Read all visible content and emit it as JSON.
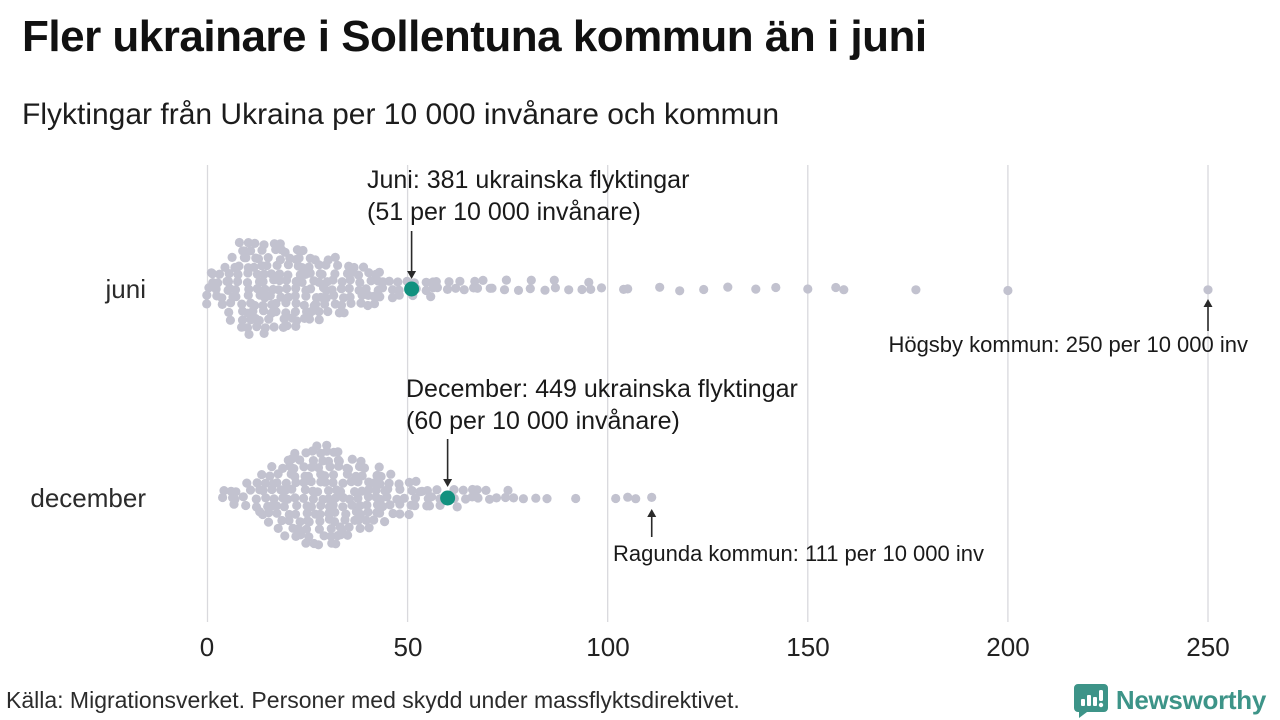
{
  "header": {
    "title": "Fler ukrainare i Sollentuna kommun än i juni",
    "subtitle": "Flyktingar från Ukraina per 10 000 invånare och kommun"
  },
  "chart_data": {
    "type": "scatter",
    "variant": "beeswarm",
    "title": "Fler ukrainare i Sollentuna kommun än i juni",
    "xlabel": "Flyktingar från Ukraina per 10 000 invånare och kommun",
    "x_ticks": [
      0,
      50,
      100,
      150,
      200,
      250
    ],
    "xlim": [
      0,
      262
    ],
    "grid": true,
    "legend": "none",
    "dot_color": "#c2c2cf",
    "highlight_color": "#12917f",
    "grid_color": "#d9d9dd",
    "rows": [
      {
        "label": "juni",
        "highlight": {
          "value": 51,
          "line1": "Juni: 381 ukrainska flyktingar",
          "line2": "(51 per 10 000 invånare)"
        },
        "max_annotation": {
          "value": 250,
          "text": "Högsby kommun: 250 per 10 000 inv"
        },
        "bins_estimated": [
          [
            0,
            5
          ],
          [
            2,
            4
          ],
          [
            4,
            6
          ],
          [
            6,
            9
          ],
          [
            8,
            12
          ],
          [
            10,
            13
          ],
          [
            12,
            12
          ],
          [
            14,
            13
          ],
          [
            16,
            12
          ],
          [
            18,
            12
          ],
          [
            20,
            11
          ],
          [
            22,
            11
          ],
          [
            24,
            10
          ],
          [
            26,
            9
          ],
          [
            28,
            9
          ],
          [
            30,
            8
          ],
          [
            32,
            8
          ],
          [
            34,
            7
          ],
          [
            36,
            6
          ],
          [
            38,
            5
          ],
          [
            40,
            6
          ],
          [
            42,
            5
          ],
          [
            44,
            4
          ],
          [
            46,
            3
          ],
          [
            48,
            3
          ],
          [
            50,
            3
          ],
          [
            52,
            2
          ],
          [
            54,
            2
          ],
          [
            56,
            3
          ],
          [
            58,
            2
          ],
          [
            60,
            2
          ],
          [
            62,
            2
          ],
          [
            64,
            1
          ],
          [
            66,
            2
          ],
          [
            68,
            1
          ],
          [
            70,
            2
          ],
          [
            72,
            1
          ],
          [
            75,
            2
          ],
          [
            78,
            1
          ],
          [
            81,
            2
          ],
          [
            84,
            1
          ],
          [
            87,
            2
          ],
          [
            90,
            1
          ],
          [
            93,
            1
          ],
          [
            96,
            2
          ],
          [
            99,
            1
          ],
          [
            103,
            1
          ]
        ],
        "outliers": [
          105,
          113,
          118,
          124,
          130,
          137,
          142,
          150,
          157,
          159,
          177,
          200,
          250
        ]
      },
      {
        "label": "december",
        "highlight": {
          "value": 60,
          "line1": "December: 449 ukrainska flyktingar",
          "line2": "(60 per 10 000 invånare)"
        },
        "max_annotation": {
          "value": 111,
          "text": "Ragunda kommun: 111 per 10 000 inv"
        },
        "bins_estimated": [
          [
            4,
            2
          ],
          [
            6,
            2
          ],
          [
            8,
            3
          ],
          [
            10,
            4
          ],
          [
            12,
            5
          ],
          [
            14,
            6
          ],
          [
            16,
            8
          ],
          [
            18,
            9
          ],
          [
            20,
            11
          ],
          [
            22,
            12
          ],
          [
            24,
            13
          ],
          [
            26,
            14
          ],
          [
            28,
            13
          ],
          [
            30,
            14
          ],
          [
            32,
            13
          ],
          [
            34,
            12
          ],
          [
            36,
            11
          ],
          [
            38,
            10
          ],
          [
            40,
            9
          ],
          [
            42,
            8
          ],
          [
            44,
            7
          ],
          [
            46,
            6
          ],
          [
            48,
            5
          ],
          [
            50,
            5
          ],
          [
            52,
            4
          ],
          [
            54,
            3
          ],
          [
            56,
            3
          ],
          [
            58,
            3
          ],
          [
            62,
            3
          ],
          [
            64,
            2
          ],
          [
            66,
            2
          ],
          [
            68,
            2
          ],
          [
            70,
            2
          ],
          [
            72,
            1
          ],
          [
            74,
            2
          ],
          [
            76,
            1
          ],
          [
            79,
            1
          ],
          [
            82,
            1
          ],
          [
            85,
            1
          ],
          [
            92,
            1
          ]
        ],
        "outliers": [
          102,
          105,
          107,
          111
        ]
      }
    ]
  },
  "footer": {
    "source": "Källa: Migrationsverket. Personer med skydd under massflyktsdirektivet.",
    "brand": "Newsworthy",
    "brand_color": "#3d9488"
  }
}
